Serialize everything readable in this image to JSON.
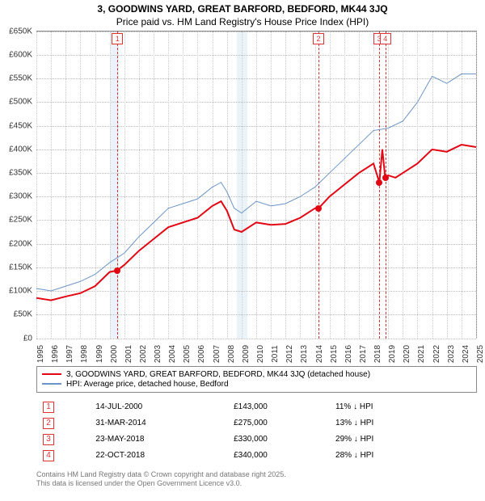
{
  "chart": {
    "title": "3, GOODWINS YARD, GREAT BARFORD, BEDFORD, MK44 3JQ",
    "subtitle": "Price paid vs. HM Land Registry's House Price Index (HPI)",
    "type": "line",
    "xlim": [
      1995,
      2025
    ],
    "ylim": [
      0,
      650000
    ],
    "ytick_step": 50000,
    "yticks": [
      "£0",
      "£50K",
      "£100K",
      "£150K",
      "£200K",
      "£250K",
      "£300K",
      "£350K",
      "£400K",
      "£450K",
      "£500K",
      "£550K",
      "£600K",
      "£650K"
    ],
    "xticks": [
      1995,
      1996,
      1997,
      1998,
      1999,
      2000,
      2001,
      2002,
      2003,
      2004,
      2005,
      2006,
      2007,
      2008,
      2009,
      2010,
      2011,
      2012,
      2013,
      2014,
      2015,
      2016,
      2017,
      2018,
      2019,
      2020,
      2021,
      2022,
      2023,
      2024,
      2025
    ],
    "background_color": "#ffffff",
    "grid_color_y": "#bbbbbb",
    "grid_color_x": "#cccccc",
    "band_color": "#eaf2fa",
    "band_ranges": [
      [
        2000.0,
        2000.6
      ],
      [
        2008.7,
        2009.4
      ]
    ],
    "axis_color": "#888888",
    "legend_border": "#888888",
    "callout_color": "#d33333",
    "series": [
      {
        "name": "3, GOODWINS YARD, GREAT BARFORD, BEDFORD, MK44 3JQ (detached house)",
        "color": "#e30613",
        "width": 2,
        "data": [
          [
            1995,
            85000
          ],
          [
            1996,
            80000
          ],
          [
            1997,
            88000
          ],
          [
            1998,
            95000
          ],
          [
            1999,
            110000
          ],
          [
            2000,
            140000
          ],
          [
            2000.5,
            143000
          ],
          [
            2001,
            155000
          ],
          [
            2002,
            185000
          ],
          [
            2003,
            210000
          ],
          [
            2004,
            235000
          ],
          [
            2005,
            245000
          ],
          [
            2006,
            255000
          ],
          [
            2007,
            280000
          ],
          [
            2007.6,
            290000
          ],
          [
            2008,
            270000
          ],
          [
            2008.5,
            230000
          ],
          [
            2009,
            225000
          ],
          [
            2010,
            245000
          ],
          [
            2011,
            240000
          ],
          [
            2012,
            242000
          ],
          [
            2013,
            255000
          ],
          [
            2014,
            275000
          ],
          [
            2014.25,
            275000
          ],
          [
            2015,
            300000
          ],
          [
            2016,
            325000
          ],
          [
            2017,
            350000
          ],
          [
            2018,
            370000
          ],
          [
            2018.4,
            330000
          ],
          [
            2018.6,
            400000
          ],
          [
            2018.8,
            340000
          ],
          [
            2019,
            345000
          ],
          [
            2019.5,
            340000
          ],
          [
            2020,
            350000
          ],
          [
            2021,
            370000
          ],
          [
            2022,
            400000
          ],
          [
            2023,
            395000
          ],
          [
            2024,
            410000
          ],
          [
            2025,
            405000
          ]
        ]
      },
      {
        "name": "HPI: Average price, detached house, Bedford",
        "color": "#6b95c8",
        "width": 1,
        "data": [
          [
            1995,
            105000
          ],
          [
            1996,
            100000
          ],
          [
            1997,
            110000
          ],
          [
            1998,
            120000
          ],
          [
            1999,
            135000
          ],
          [
            2000,
            160000
          ],
          [
            2001,
            180000
          ],
          [
            2002,
            215000
          ],
          [
            2003,
            245000
          ],
          [
            2004,
            275000
          ],
          [
            2005,
            285000
          ],
          [
            2006,
            295000
          ],
          [
            2007,
            320000
          ],
          [
            2007.6,
            330000
          ],
          [
            2008,
            310000
          ],
          [
            2008.5,
            275000
          ],
          [
            2009,
            265000
          ],
          [
            2010,
            290000
          ],
          [
            2011,
            280000
          ],
          [
            2012,
            285000
          ],
          [
            2013,
            300000
          ],
          [
            2014,
            320000
          ],
          [
            2015,
            350000
          ],
          [
            2016,
            380000
          ],
          [
            2017,
            410000
          ],
          [
            2018,
            440000
          ],
          [
            2019,
            445000
          ],
          [
            2020,
            460000
          ],
          [
            2021,
            500000
          ],
          [
            2022,
            555000
          ],
          [
            2023,
            540000
          ],
          [
            2024,
            560000
          ],
          [
            2025,
            560000
          ]
        ]
      }
    ],
    "sale_markers": [
      {
        "n": "1",
        "x": 2000.53,
        "y": 143000
      },
      {
        "n": "2",
        "x": 2014.25,
        "y": 275000
      },
      {
        "n": "3",
        "x": 2018.39,
        "y": 330000
      },
      {
        "n": "4",
        "x": 2018.81,
        "y": 340000
      }
    ],
    "marker_color": "#e30613"
  },
  "legend": {
    "rows": [
      {
        "color": "#e30613",
        "label": "3, GOODWINS YARD, GREAT BARFORD, BEDFORD, MK44 3JQ (detached house)"
      },
      {
        "color": "#6b95c8",
        "label": "HPI: Average price, detached house, Bedford"
      }
    ]
  },
  "sales": [
    {
      "n": "1",
      "date": "14-JUL-2000",
      "price": "£143,000",
      "diff": "11% ↓ HPI"
    },
    {
      "n": "2",
      "date": "31-MAR-2014",
      "price": "£275,000",
      "diff": "13% ↓ HPI"
    },
    {
      "n": "3",
      "date": "23-MAY-2018",
      "price": "£330,000",
      "diff": "29% ↓ HPI"
    },
    {
      "n": "4",
      "date": "22-OCT-2018",
      "price": "£340,000",
      "diff": "28% ↓ HPI"
    }
  ],
  "footer": {
    "l1": "Contains HM Land Registry data © Crown copyright and database right 2025.",
    "l2": "This data is licensed under the Open Government Licence v3.0."
  }
}
